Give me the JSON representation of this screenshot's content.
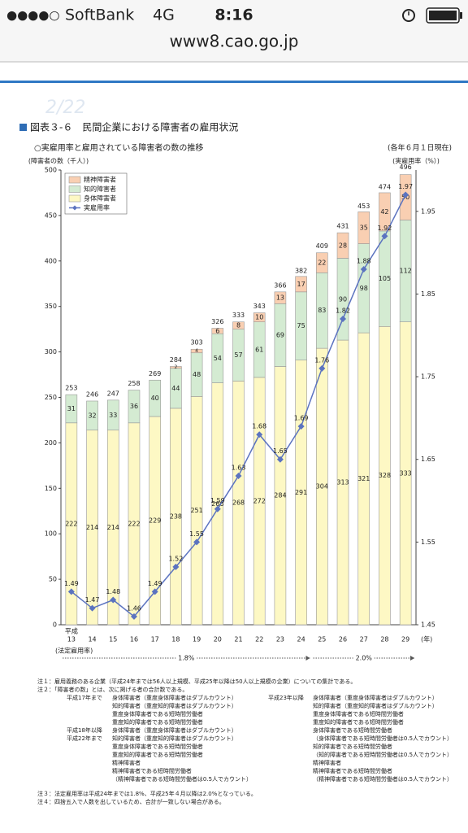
{
  "status_bar": {
    "signal": "●●●●○",
    "carrier": "SoftBank",
    "network": "4G",
    "time": "8:16",
    "url": "www8.cao.go.jp"
  },
  "watermark": "2/22",
  "chart_data": {
    "type": "bar",
    "title": "図表３-６　民間企業における障害者の雇用状況",
    "subtitle": "○実雇用率と雇用されている障害者の数の推移",
    "date_note": "(各年６月１日現在)",
    "y_label": "(障害者の数（千人）)",
    "y2_label": "(実雇用率（%）)",
    "era_label": "平成",
    "x_unit": "(年)",
    "categories": [
      "13",
      "14",
      "15",
      "16",
      "17",
      "18",
      "19",
      "20",
      "21",
      "22",
      "23",
      "24",
      "25",
      "26",
      "27",
      "28",
      "29"
    ],
    "ylim": [
      0,
      500
    ],
    "yticks": [
      0,
      50,
      100,
      150,
      200,
      250,
      300,
      350,
      400,
      450,
      500
    ],
    "y2lim": [
      1.45,
      2.0
    ],
    "y2ticks": [
      1.45,
      1.55,
      1.65,
      1.75,
      1.85,
      1.95
    ],
    "grid": false,
    "legend": "upper left",
    "series": [
      {
        "name": "身体障害者",
        "color": "#fdf8c4",
        "values": [
          222,
          214,
          214,
          222,
          229,
          238,
          251,
          266,
          268,
          272,
          284,
          291,
          304,
          313,
          321,
          328,
          333
        ]
      },
      {
        "name": "知的障害者",
        "color": "#d4ebd2",
        "values": [
          31,
          32,
          33,
          36,
          40,
          44,
          48,
          54,
          57,
          61,
          69,
          75,
          83,
          90,
          98,
          105,
          112
        ]
      },
      {
        "name": "精神障害者",
        "color": "#f9cfb2",
        "values": [
          null,
          null,
          null,
          null,
          null,
          2,
          4,
          6,
          8,
          10,
          13,
          17,
          22,
          28,
          35,
          42,
          50
        ]
      },
      {
        "name": "実雇用率",
        "color": "#5b73c0",
        "type": "line",
        "axis": "y2",
        "values": [
          1.49,
          1.47,
          1.48,
          1.46,
          1.49,
          1.52,
          1.55,
          1.59,
          1.63,
          1.68,
          1.65,
          1.69,
          1.76,
          1.82,
          1.88,
          1.92,
          1.97
        ]
      }
    ],
    "totals": [
      253,
      246,
      247,
      258,
      269,
      284,
      303,
      326,
      333,
      343,
      366,
      382,
      409,
      431,
      453,
      474,
      496
    ],
    "legal_rate": {
      "label": "(法定雇用率)",
      "periods": [
        "1.8%",
        "2.0%"
      ]
    }
  },
  "notes": {
    "note1": "注１：雇用義務のある企業（平成24年までは56人以上規模、平成25年以降は50人以上規模の企業）についての集計である。",
    "note2": "注２：「障害者の数」とは、次に掲げる者の合計数である。",
    "groups": [
      {
        "period": [
          "平成17年まで"
        ],
        "items": [
          "身体障害者（重度身体障害者はダブルカウント）",
          "知的障害者（重度知的障害者はダブルカウント）",
          "重度身体障害者である短時間労働者",
          "重度知的障害者である短時間労働者"
        ]
      },
      {
        "period": [
          "平成18年以降",
          "平成22年まで"
        ],
        "items": [
          "身体障害者（重度身体障害者はダブルカウント）",
          "知的障害者（重度知的障害者はダブルカウント）",
          "重度身体障害者である短時間労働者",
          "重度知的障害者である短時間労働者",
          "精神障害者",
          "精神障害者である短時間労働者",
          "（精神障害者である短時間労働者は0.5人でカウント）"
        ]
      },
      {
        "period": [
          "平成23年以降"
        ],
        "items": [
          "身体障害者（重度身体障害者はダブルカウント）",
          "知的障害者（重度知的障害者はダブルカウント）",
          "重度身体障害者である短時間労働者",
          "重度知的障害者である短時間労働者",
          "身体障害者である短時間労働者",
          "（身体障害者である短時間労働者は0.5人でカウント）",
          "知的障害者である短時間労働者",
          "（知的障害者である短時間労働者は0.5人でカウント）",
          "精神障害者",
          "精神障害者である短時間労働者",
          "（精神障害者である短時間労働者は0.5人でカウント）"
        ]
      }
    ],
    "note3": "注３：法定雇用率は平成24年までは1.8%、平成25年４月以降は2.0%となっている。",
    "note4": "注４：四捨五入で人数を出しているため、合計が一致しない場合がある。"
  }
}
